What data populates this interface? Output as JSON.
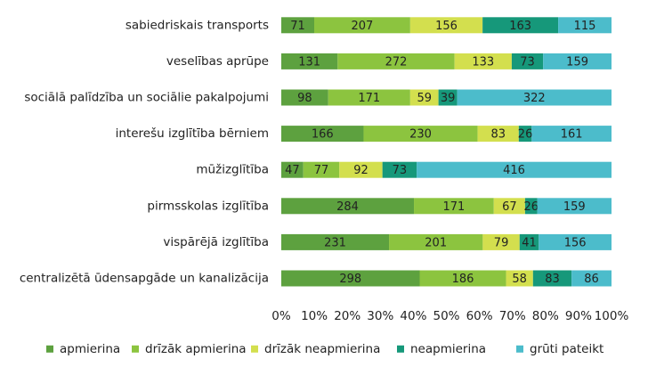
{
  "chart_data": {
    "type": "bar",
    "orientation": "horizontal",
    "stacked": "percent",
    "categories": [
      "sabiedriskais transports",
      "veselības aprūpe",
      "sociālā palīdzība un sociālie pakalpojumi",
      "interešu izglītība bērniem",
      "mūžizglītība",
      "pirmsskolas izglītība",
      "vispārējā izglītība",
      "centralizētā ūdensapgāde un kanalizācija"
    ],
    "series": [
      {
        "name": "apmierina",
        "color": "#5da13f",
        "values": [
          71,
          131,
          98,
          166,
          47,
          284,
          231,
          298
        ]
      },
      {
        "name": "drīzāk apmierina",
        "color": "#8cc43f",
        "values": [
          207,
          272,
          171,
          230,
          77,
          171,
          201,
          186
        ]
      },
      {
        "name": "drīzāk neapmierina",
        "color": "#d3df4e",
        "values": [
          156,
          133,
          59,
          83,
          92,
          67,
          79,
          58
        ]
      },
      {
        "name": "neapmierina",
        "color": "#16987a",
        "values": [
          163,
          73,
          39,
          26,
          73,
          26,
          41,
          83
        ]
      },
      {
        "name": "grūti pateikt",
        "color": "#4cbccb",
        "values": [
          115,
          159,
          322,
          161,
          416,
          159,
          156,
          86
        ]
      }
    ],
    "xlim": [
      0,
      100
    ],
    "xticks": [
      {
        "value": 0,
        "label": "0%"
      },
      {
        "value": 10,
        "label": "10%"
      },
      {
        "value": 20,
        "label": "20%"
      },
      {
        "value": 30,
        "label": "30%"
      },
      {
        "value": 40,
        "label": "40%"
      },
      {
        "value": 50,
        "label": "50%"
      },
      {
        "value": 60,
        "label": "60%"
      },
      {
        "value": 70,
        "label": "70%"
      },
      {
        "value": 80,
        "label": "80%"
      },
      {
        "value": 90,
        "label": "90%"
      },
      {
        "value": 100,
        "label": "100%"
      }
    ],
    "legend": "bottom"
  }
}
